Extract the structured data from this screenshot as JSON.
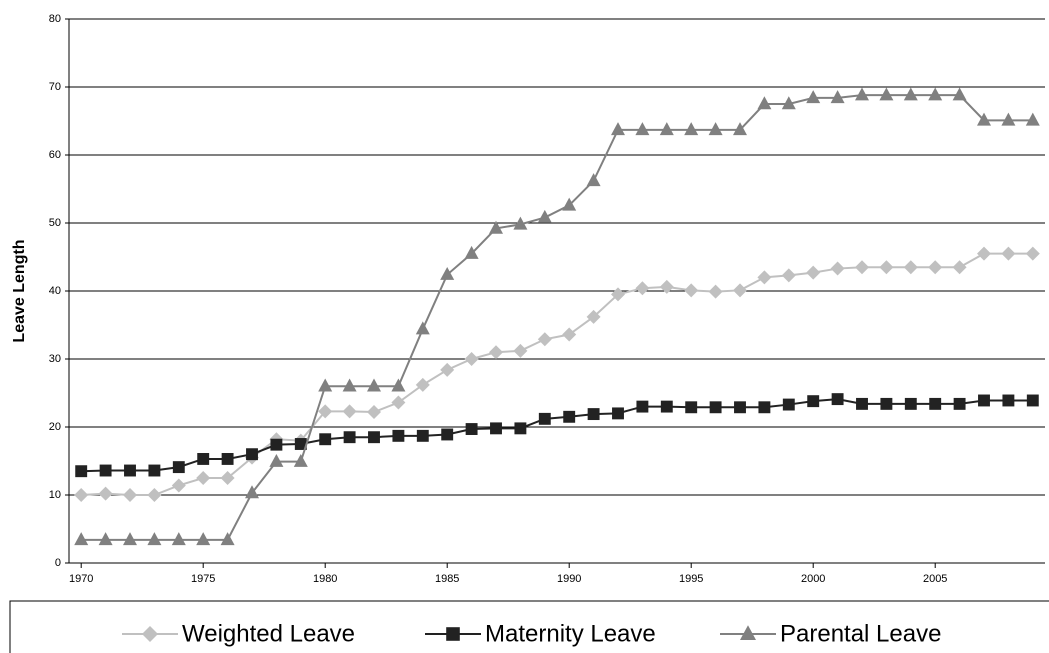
{
  "chart_data": {
    "type": "line",
    "y_label": "Leave Length",
    "x": [
      1970,
      1971,
      1972,
      1973,
      1974,
      1975,
      1976,
      1977,
      1978,
      1979,
      1980,
      1981,
      1982,
      1983,
      1984,
      1985,
      1986,
      1987,
      1988,
      1989,
      1990,
      1991,
      1992,
      1993,
      1994,
      1995,
      1996,
      1997,
      1998,
      1999,
      2000,
      2001,
      2002,
      2003,
      2004,
      2005,
      2006,
      2007,
      2008,
      2009
    ],
    "series": [
      {
        "name": "Weighted Leave",
        "color": "#c0c0c0",
        "marker": "diamond",
        "values": [
          10,
          10.2,
          10,
          10,
          11.4,
          12.5,
          12.5,
          15.5,
          18.2,
          18,
          22.3,
          22.3,
          22.2,
          23.6,
          26.2,
          28.4,
          30,
          31,
          31.2,
          32.9,
          33.6,
          36.2,
          39.5,
          40.4,
          40.6,
          40.1,
          39.9,
          40.1,
          42,
          42.3,
          42.7,
          43.3,
          43.5,
          43.5,
          43.5,
          43.5,
          43.5,
          45.5,
          45.5,
          45.5
        ]
      },
      {
        "name": "Maternity Leave",
        "color": "#222222",
        "marker": "square",
        "values": [
          13.5,
          13.6,
          13.6,
          13.6,
          14.1,
          15.3,
          15.3,
          16,
          17.4,
          17.5,
          18.2,
          18.5,
          18.5,
          18.7,
          18.7,
          18.9,
          19.7,
          19.8,
          19.8,
          21.2,
          21.5,
          21.9,
          22,
          23,
          23,
          22.9,
          22.9,
          22.9,
          22.9,
          23.3,
          23.8,
          24.1,
          23.4,
          23.4,
          23.4,
          23.4,
          23.4,
          23.9,
          23.9,
          23.9
        ]
      },
      {
        "name": "Parental Leave",
        "color": "#808080",
        "marker": "triangle",
        "values": [
          3.4,
          3.4,
          3.4,
          3.4,
          3.4,
          3.4,
          3.4,
          10.3,
          14.9,
          14.9,
          26,
          26,
          26,
          26,
          34.4,
          42.4,
          45.5,
          49.2,
          49.8,
          50.8,
          52.6,
          56.2,
          63.7,
          63.7,
          63.7,
          63.7,
          63.7,
          63.7,
          67.5,
          67.5,
          68.4,
          68.4,
          68.8,
          68.8,
          68.8,
          68.8,
          68.8,
          65.1,
          65.1,
          65.1
        ]
      }
    ],
    "xlim": [
      1969.5,
      2009.5
    ],
    "xticks": [
      1970,
      1975,
      1980,
      1985,
      1990,
      1995,
      2000,
      2005
    ],
    "ylim": [
      0,
      80
    ],
    "yticks": [
      0,
      10,
      20,
      30,
      40,
      50,
      60,
      70,
      80
    ],
    "grid": true,
    "legend": "bottom"
  }
}
